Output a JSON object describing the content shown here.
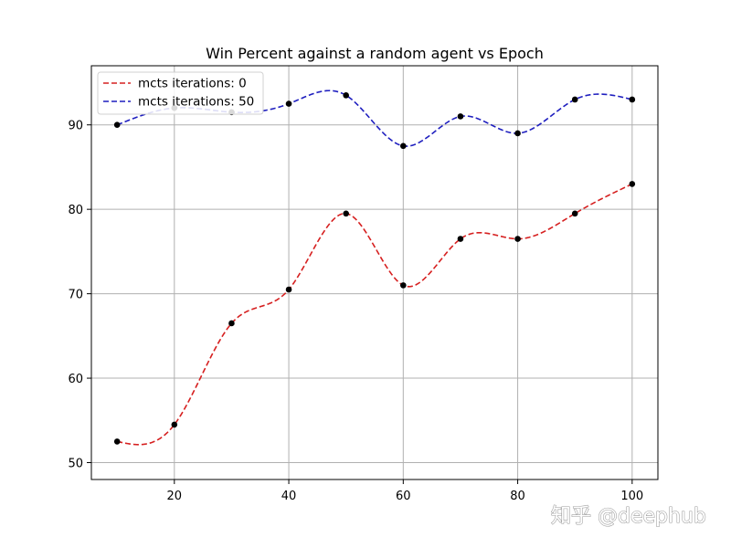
{
  "chart_data": {
    "type": "line",
    "title": "Win Percent against a random agent vs Epoch",
    "xlabel": "",
    "ylabel": "",
    "xlim": [
      5.5,
      104.5
    ],
    "ylim": [
      48,
      97
    ],
    "x_ticks": [
      20,
      40,
      60,
      80,
      100
    ],
    "y_ticks": [
      50,
      60,
      70,
      80,
      90
    ],
    "grid": true,
    "legend_position": "upper left",
    "x": [
      10,
      20,
      30,
      40,
      50,
      60,
      70,
      80,
      90,
      100
    ],
    "series": [
      {
        "name": "mcts iterations: 0",
        "color": "#d62020",
        "line_style": "dashed",
        "values": [
          52.5,
          54.5,
          66.5,
          70.5,
          79.5,
          71.0,
          76.5,
          76.5,
          79.5,
          83.0
        ]
      },
      {
        "name": "mcts iterations: 50",
        "color": "#1f1fbf",
        "line_style": "dashed",
        "values": [
          90.0,
          92.0,
          91.5,
          92.5,
          93.5,
          87.5,
          91.0,
          89.0,
          93.0,
          93.0
        ]
      }
    ],
    "marker_color": "#000000"
  },
  "watermark": {
    "text": "知乎 @deephub"
  }
}
